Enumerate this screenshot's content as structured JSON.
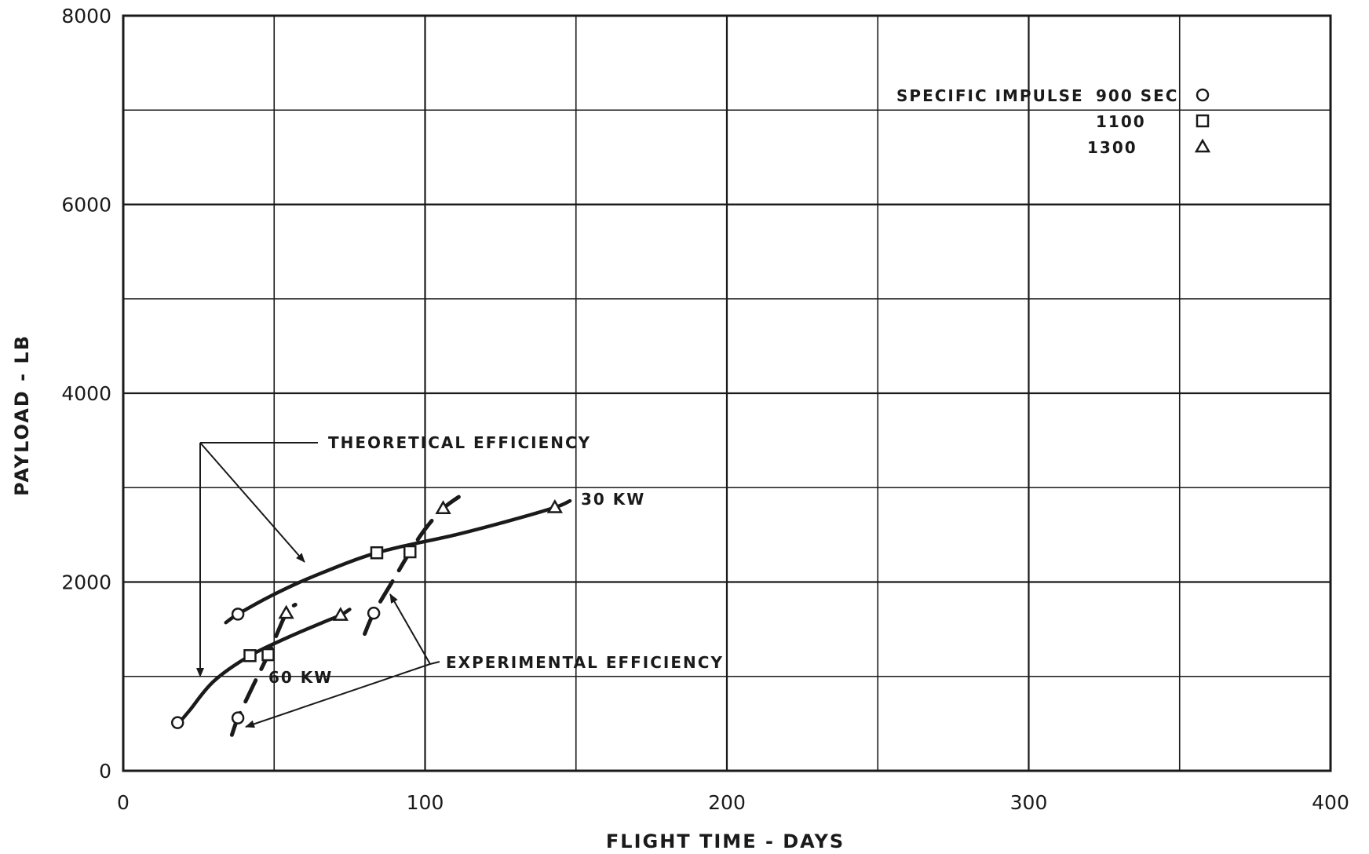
{
  "chart_data": {
    "type": "line",
    "xlabel": "FLIGHT TIME - DAYS",
    "ylabel": "PAYLOAD - LB",
    "xlim": [
      0,
      400
    ],
    "ylim": [
      0,
      8000
    ],
    "x_ticks": [
      "0",
      "100",
      "200",
      "300",
      "400"
    ],
    "y_ticks": [
      "0",
      "2000",
      "4000",
      "6000",
      "8000"
    ],
    "grid": true,
    "legend": {
      "title": "SPECIFIC IMPULSE",
      "placement": "top-right",
      "entries": [
        {
          "label": "900 SEC",
          "marker": "circle"
        },
        {
          "label": "1100",
          "marker": "square"
        },
        {
          "label": "1300",
          "marker": "triangle"
        }
      ]
    },
    "series": [
      {
        "group": "30 KW",
        "efficiency": "theoretical",
        "style": "solid",
        "curve": [
          [
            34,
            1570
          ],
          [
            38,
            1660
          ],
          [
            50,
            1870
          ],
          [
            63,
            2060
          ],
          [
            84,
            2310
          ],
          [
            110,
            2500
          ],
          [
            128,
            2650
          ],
          [
            143,
            2790
          ],
          [
            148,
            2860
          ]
        ],
        "points": [
          {
            "x": 38,
            "y": 1660,
            "marker": "circle"
          },
          {
            "x": 84,
            "y": 2310,
            "marker": "square"
          },
          {
            "x": 143,
            "y": 2790,
            "marker": "triangle"
          }
        ]
      },
      {
        "group": "30 KW",
        "efficiency": "experimental",
        "style": "dashed",
        "curve": [
          [
            80,
            1450
          ],
          [
            83,
            1670
          ],
          [
            90,
            2050
          ],
          [
            95,
            2320
          ],
          [
            100,
            2560
          ],
          [
            106,
            2780
          ],
          [
            112,
            2920
          ]
        ],
        "points": [
          {
            "x": 83,
            "y": 1670,
            "marker": "circle"
          },
          {
            "x": 95,
            "y": 2320,
            "marker": "square"
          },
          {
            "x": 106,
            "y": 2780,
            "marker": "triangle"
          }
        ]
      },
      {
        "group": "60 KW",
        "efficiency": "theoretical",
        "style": "solid",
        "curve": [
          [
            18,
            490
          ],
          [
            22,
            640
          ],
          [
            30,
            950
          ],
          [
            42,
            1220
          ],
          [
            55,
            1420
          ],
          [
            66,
            1570
          ],
          [
            72,
            1650
          ],
          [
            75,
            1710
          ]
        ],
        "points": [
          {
            "x": 18,
            "y": 510,
            "marker": "circle"
          },
          {
            "x": 42,
            "y": 1220,
            "marker": "square"
          },
          {
            "x": 72,
            "y": 1650,
            "marker": "triangle"
          }
        ]
      },
      {
        "group": "60 KW",
        "efficiency": "experimental",
        "style": "dashed",
        "curve": [
          [
            36,
            380
          ],
          [
            38,
            560
          ],
          [
            43,
            900
          ],
          [
            48,
            1230
          ],
          [
            54,
            1670
          ],
          [
            57,
            1760
          ]
        ],
        "points": [
          {
            "x": 38,
            "y": 560,
            "marker": "circle"
          },
          {
            "x": 48,
            "y": 1230,
            "marker": "square"
          },
          {
            "x": 54,
            "y": 1670,
            "marker": "triangle"
          }
        ]
      }
    ],
    "annotations": [
      {
        "text": "THEORETICAL EFFICIENCY"
      },
      {
        "text": "EXPERIMENTAL EFFICIENCY"
      },
      {
        "text": "30 KW"
      },
      {
        "text": "60 KW"
      }
    ]
  }
}
